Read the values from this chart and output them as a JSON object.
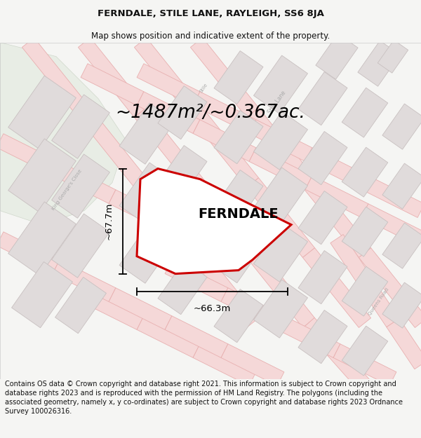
{
  "title": "FERNDALE, STILE LANE, RAYLEIGH, SS6 8JA",
  "subtitle": "Map shows position and indicative extent of the property.",
  "area_text": "~1487m²/~0.367ac.",
  "property_label": "FERNDALE",
  "dim_height": "~67.7m",
  "dim_width": "~66.3m",
  "disclaimer": "Contains OS data © Crown copyright and database right 2021. This information is subject to Crown copyright and database rights 2023 and is reproduced with the permission of HM Land Registry. The polygons (including the associated geometry, namely x, y co-ordinates) are subject to Crown copyright and database rights 2023 Ordnance Survey 100026316.",
  "bg_color": "#f5f5f3",
  "map_bg": "#f5f5f0",
  "open_land_color": "#e8ede5",
  "road_fill": "#f5d8d8",
  "road_edge": "#e8b0b0",
  "building_fill": "#e0dbdb",
  "building_edge": "#c8c0c0",
  "property_fill": "#ffffff",
  "property_edge": "#cc0000",
  "title_fontsize": 9.5,
  "subtitle_fontsize": 8.5,
  "area_fontsize": 19,
  "label_fontsize": 14,
  "dim_fontsize": 9.5,
  "disclaimer_fontsize": 7.0,
  "road_label_color": "#aaaaaa",
  "road_label_size": 5.5
}
